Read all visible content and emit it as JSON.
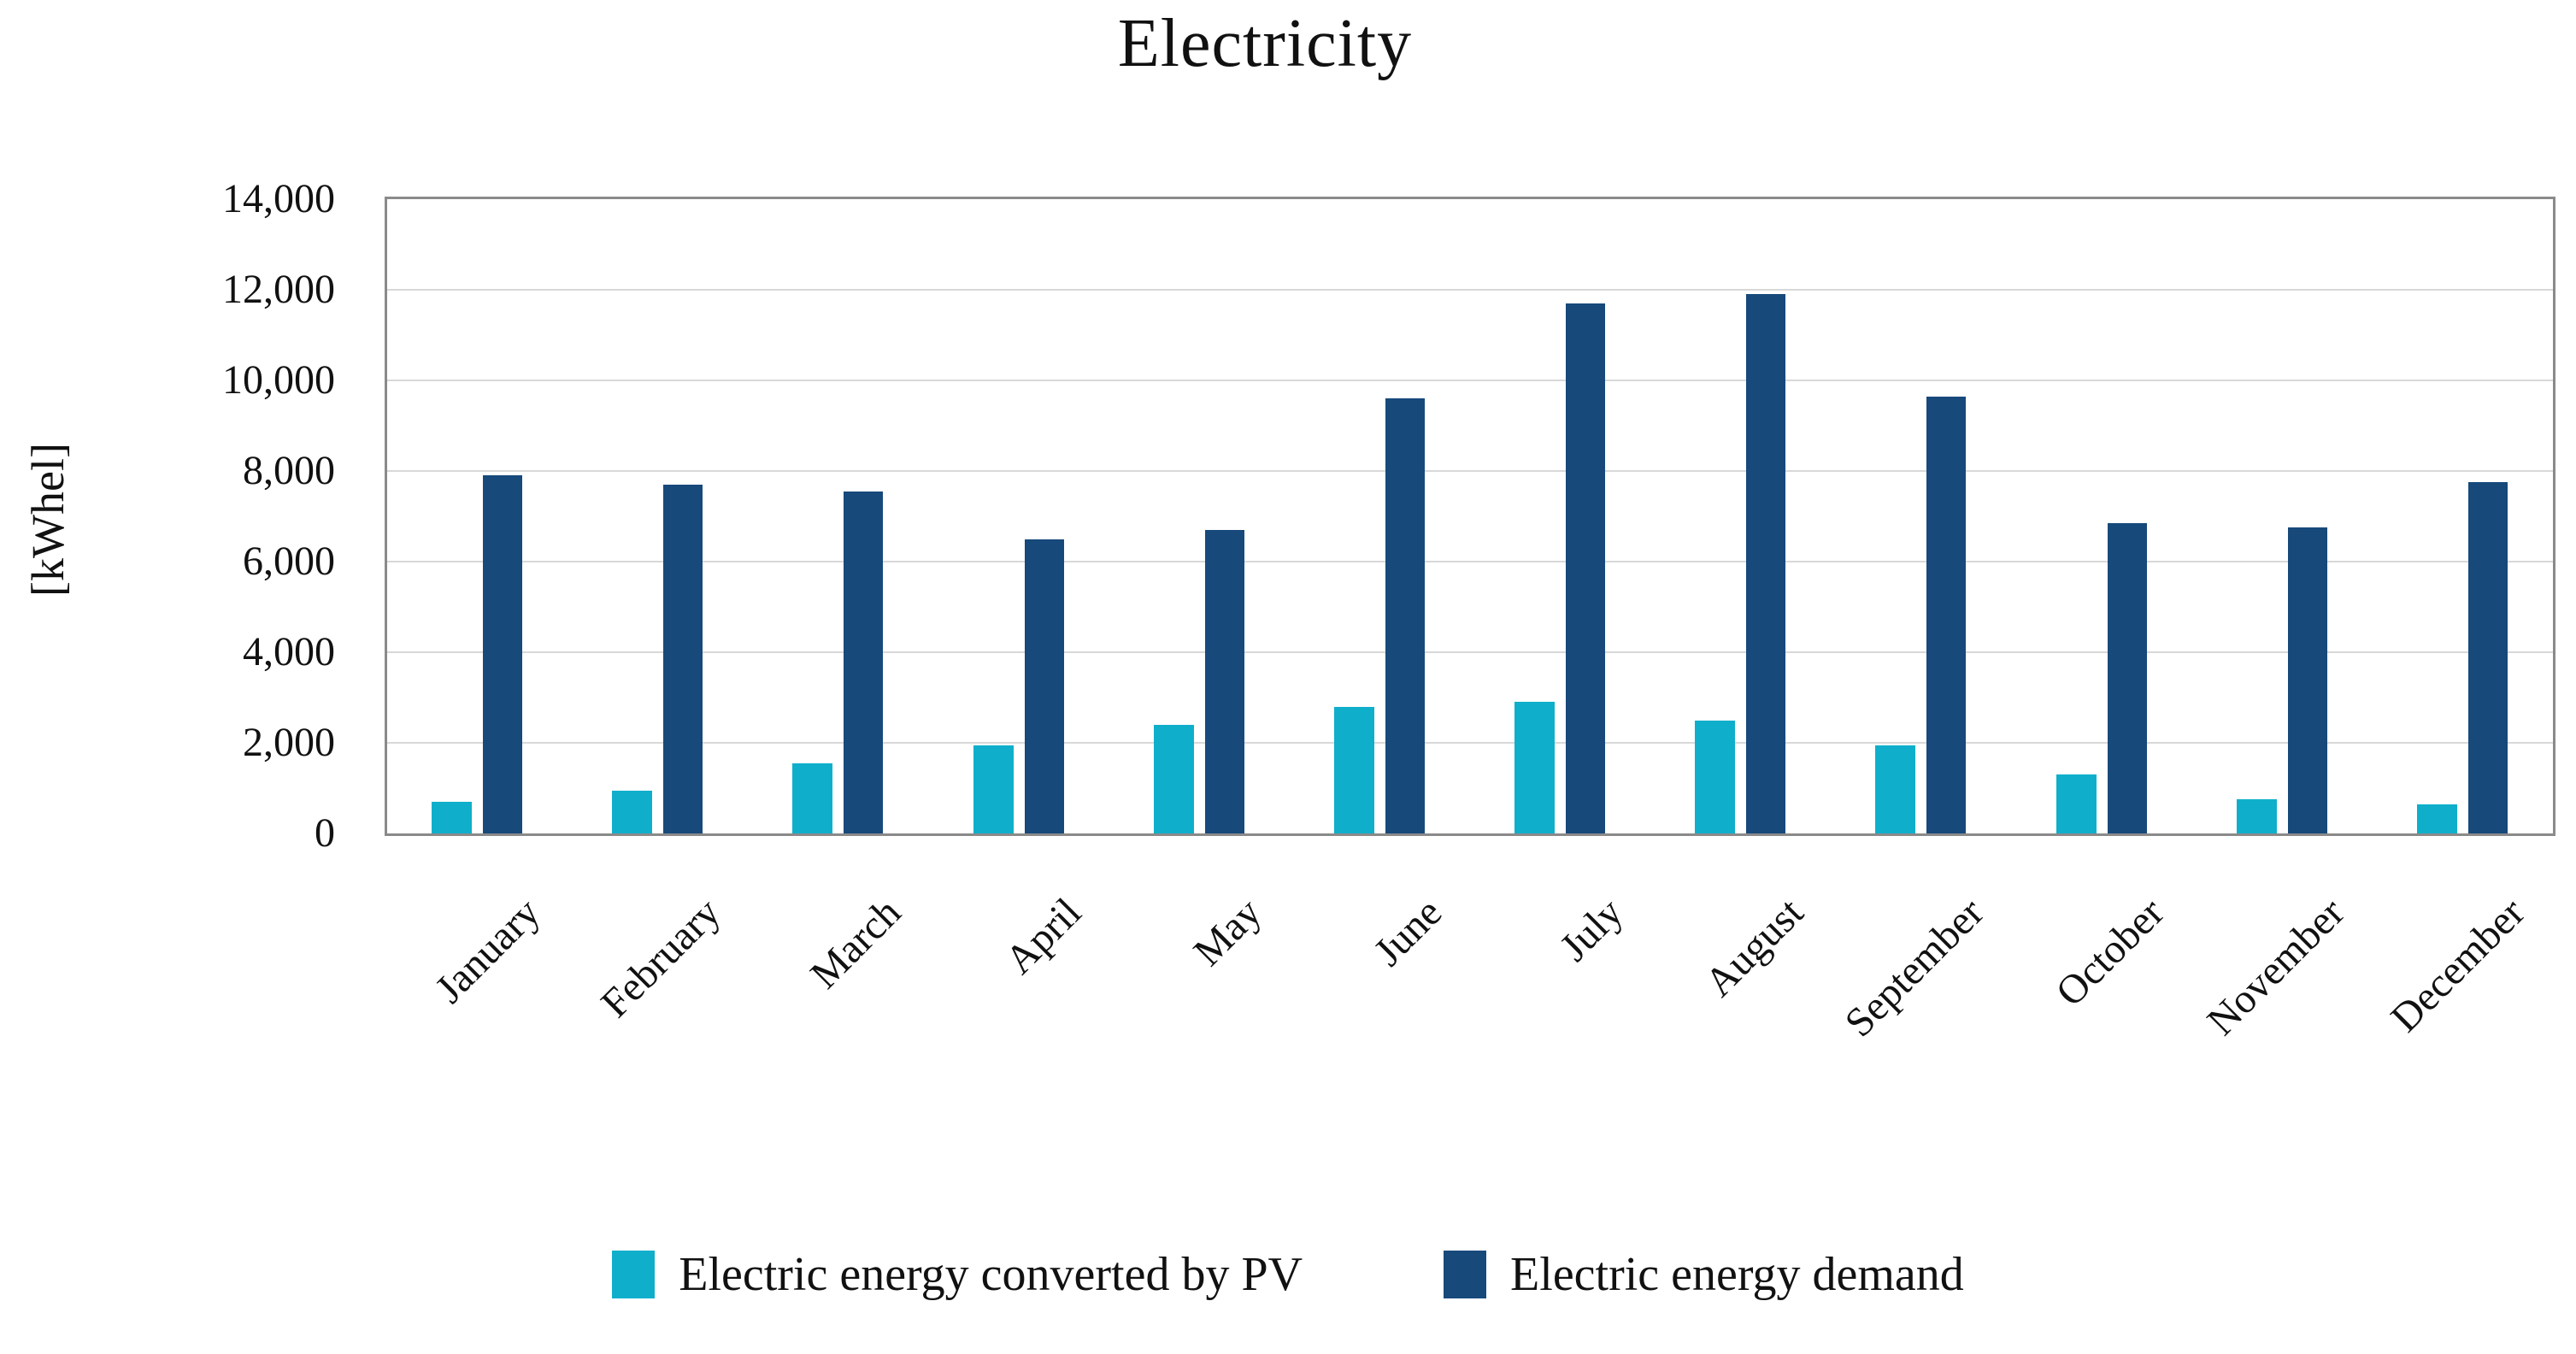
{
  "title": "Electricity",
  "y_axis": {
    "label": "[kWhel]",
    "ticks": [
      "14,000",
      "12,000",
      "10,000",
      "8,000",
      "6,000",
      "4,000",
      "2,000",
      "0"
    ]
  },
  "legend": [
    {
      "label": "Electric energy converted by PV",
      "color": "#0fafcb"
    },
    {
      "label": "Electric energy demand",
      "color": "#17497b"
    }
  ],
  "colors": {
    "pv_bar": "#0fafcb",
    "demand_bar": "#17497b",
    "gridline": "#d8d8d8",
    "plot_border": "#8a8a8a",
    "text": "#111111"
  },
  "chart_data": {
    "type": "bar",
    "title": "Electricity",
    "xlabel": "",
    "ylabel": "[kWhel]",
    "ylim": [
      0,
      14000
    ],
    "ytick_step": 2000,
    "grid": true,
    "legend_position": "bottom",
    "categories": [
      "January",
      "February",
      "March",
      "April",
      "May",
      "June",
      "July",
      "August",
      "September",
      "October",
      "November",
      "December"
    ],
    "series": [
      {
        "name": "Electric energy converted by PV",
        "color": "#0fafcb",
        "values": [
          700,
          950,
          1550,
          1950,
          2400,
          2800,
          2900,
          2500,
          1950,
          1300,
          750,
          650
        ]
      },
      {
        "name": "Electric energy demand",
        "color": "#17497b",
        "values": [
          7900,
          7700,
          7550,
          6500,
          6700,
          9600,
          11700,
          11900,
          9650,
          6850,
          6750,
          7750
        ]
      }
    ]
  }
}
